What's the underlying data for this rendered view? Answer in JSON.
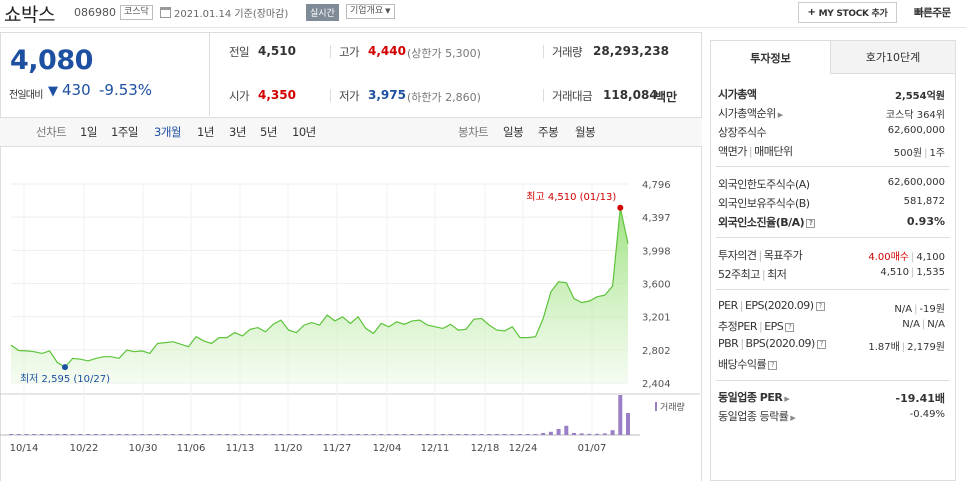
{
  "header": {
    "stock_name": "쇼박스",
    "stock_code": "086980",
    "market": "코스닥",
    "base_date": "2021.01.14 기준(장마감)",
    "realtime_badge": "실시간",
    "company_overview": "기업개요",
    "my_stock_button": "MY STOCK 추가",
    "quick_order": "빠른주문"
  },
  "price": {
    "current": "4,080",
    "change_label": "전일대비",
    "change_value": "430",
    "change_pct": "-9.53%",
    "direction": "down"
  },
  "summary": {
    "prev_close_label": "전일",
    "prev_close": "4,510",
    "high_label": "고가",
    "high": "4,440",
    "upper_limit": "(상한가 5,300)",
    "volume_label": "거래량",
    "volume": "28,293,238",
    "open_label": "시가",
    "open": "4,350",
    "low_label": "저가",
    "low": "3,975",
    "lower_limit": "(하한가 2,860)",
    "trade_amount_label": "거래대금",
    "trade_amount": "118,084",
    "trade_amount_unit": "백만"
  },
  "chart_tabs": {
    "line_chart_label": "선차트",
    "periods": [
      "1일",
      "1주일",
      "3개월",
      "1년",
      "3년",
      "5년",
      "10년"
    ],
    "selected_period": "3개월",
    "candle_chart_label": "봉차트",
    "candle_periods": [
      "일봉",
      "주봉",
      "월봉"
    ]
  },
  "chart_data": {
    "type": "area",
    "ylim": [
      2404,
      4796
    ],
    "y_ticks": [
      "4,796",
      "4,397",
      "3,998",
      "3,600",
      "3,201",
      "2,802",
      "2,404"
    ],
    "x_ticks": [
      "10/14",
      "10/22",
      "10/30",
      "11/06",
      "11/13",
      "11/20",
      "11/27",
      "12/04",
      "12/11",
      "12/18",
      "12/24",
      "01/07"
    ],
    "max_label": "최고 4,510 (01/13)",
    "min_label": "최저 2,595 (10/27)",
    "volume_legend": "거래량",
    "series": [
      {
        "values": [
          2860,
          2795,
          2790,
          2780,
          2760,
          2790,
          2650,
          2595,
          2700,
          2690,
          2670,
          2700,
          2720,
          2720,
          2700,
          2800,
          2780,
          2790,
          2760,
          2880,
          2890,
          2900,
          2870,
          2840,
          2960,
          2910,
          2880,
          2950,
          2950,
          3010,
          2970,
          3050,
          3070,
          3020,
          3110,
          3160,
          3040,
          3010,
          3100,
          3130,
          3100,
          3220,
          3150,
          3200,
          3120,
          3200,
          3060,
          3000,
          3120,
          3080,
          3140,
          3110,
          3150,
          3160,
          3100,
          3080,
          3060,
          3110,
          3040,
          3050,
          3170,
          3180,
          3100,
          3040,
          3030,
          3080,
          2950,
          2950,
          2960,
          3180,
          3500,
          3620,
          3610,
          3420,
          3370,
          3390,
          3440,
          3460,
          3570,
          4510,
          4080
        ]
      }
    ],
    "volume_bars": [
      0.01,
      0.01,
      0.01,
      0.01,
      0.01,
      0.01,
      0.01,
      0.01,
      0.01,
      0.01,
      0.01,
      0.01,
      0.01,
      0.01,
      0.01,
      0.01,
      0.01,
      0.01,
      0.01,
      0.01,
      0.01,
      0.01,
      0.01,
      0.01,
      0.01,
      0.02,
      0.01,
      0.01,
      0.01,
      0.01,
      0.01,
      0.01,
      0.01,
      0.01,
      0.01,
      0.01,
      0.01,
      0.01,
      0.01,
      0.01,
      0.02,
      0.01,
      0.01,
      0.01,
      0.01,
      0.01,
      0.01,
      0.01,
      0.01,
      0.01,
      0.01,
      0.01,
      0.01,
      0.01,
      0.01,
      0.01,
      0.01,
      0.01,
      0.01,
      0.01,
      0.01,
      0.01,
      0.01,
      0.01,
      0.01,
      0.01,
      0.01,
      0.01,
      0.01,
      0.05,
      0.08,
      0.15,
      0.23,
      0.05,
      0.04,
      0.03,
      0.03,
      0.04,
      0.12,
      1.0,
      0.55
    ]
  },
  "right_panel": {
    "tab_invest": "투자정보",
    "tab_hoga": "호가10단계",
    "rows": {
      "market_cap_label": "시가총액",
      "market_cap": "2,554억원",
      "market_cap_rank_label": "시가총액순위",
      "market_cap_rank": "코스닥 364위",
      "shares_label": "상장주식수",
      "shares": "62,600,000",
      "par_label": "액면가",
      "trade_unit_label": "매매단위",
      "par": "500원",
      "trade_unit": "1주",
      "foreign_limit_label": "외국인한도주식수(A)",
      "foreign_limit": "62,600,000",
      "foreign_holding_label": "외국인보유주식수(B)",
      "foreign_holding": "581,872",
      "foreign_ratio_label": "외국인소진율(B/A)",
      "foreign_ratio": "0.93%",
      "opinion_label": "투자의견",
      "target_label": "목표주가",
      "opinion": "4.00매수",
      "target": "4,100",
      "week52_label": "52주최고",
      "week52_low_label": "최저",
      "week52_high": "4,510",
      "week52_low": "1,535",
      "per_label": "PER",
      "eps_label": "EPS(2020.09)",
      "per": "N/A",
      "eps": "-19원",
      "est_per_label": "추정PER",
      "est_eps_label": "EPS",
      "est_per": "N/A",
      "est_eps": "N/A",
      "pbr_label": "PBR",
      "bps_label": "BPS(2020.09)",
      "pbr": "1.87배",
      "bps": "2,179원",
      "div_label": "배당수익률",
      "div": "",
      "industry_per_label": "동일업종 PER",
      "industry_per": "-19.41배",
      "industry_change_label": "동일업종 등락률",
      "industry_change": "-0.49%"
    }
  }
}
